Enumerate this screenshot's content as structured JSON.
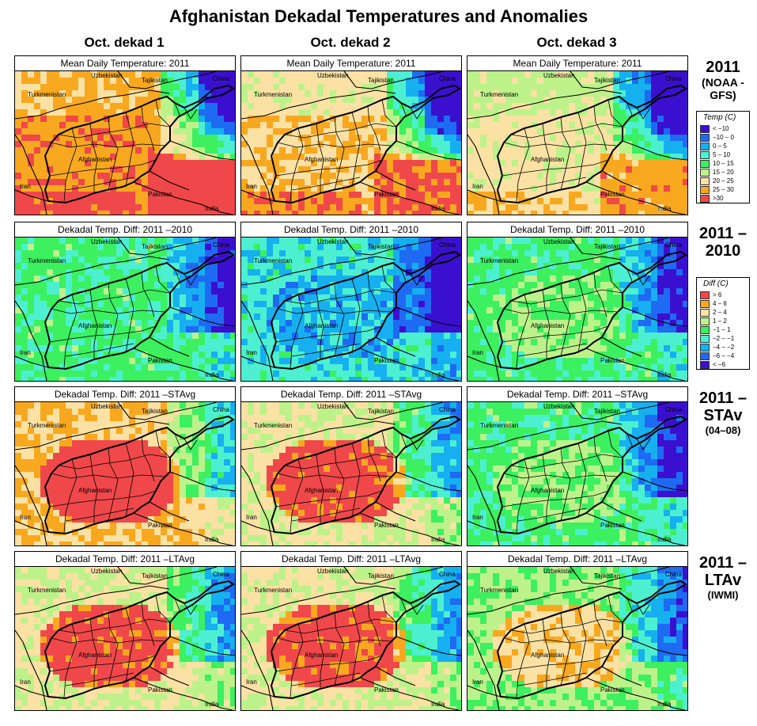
{
  "title": "Afghanistan Dekadal Temperatures and Anomalies",
  "columns": [
    "Oct. dekad 1",
    "Oct. dekad 2",
    "Oct. dekad 3"
  ],
  "rows": [
    {
      "label_main": "2011",
      "label_sub": "(NOAA -GFS)",
      "panel_title": "Mean Daily Temperature: 2011",
      "scale": "temp",
      "panels": [
        {
          "base": 1,
          "hot": 1
        },
        {
          "base": 0,
          "hot": 0
        },
        {
          "base": -1,
          "hot": -1
        }
      ]
    },
    {
      "label_main": "2011 –2010",
      "label_sub": "",
      "panel_title": "Dekadal Temp. Diff:  2011 –2010",
      "scale": "diff",
      "panels": [
        {
          "base": 0,
          "hot": 0
        },
        {
          "base": -1,
          "hot": -1
        },
        {
          "base": 0,
          "hot": 1
        }
      ]
    },
    {
      "label_main": "2011 –STAv",
      "label_sub": "(04–08)",
      "panel_title": "Dekadal Temp. Diff:  2011 –STAvg",
      "scale": "diff",
      "panels": [
        {
          "base": 3,
          "hot": 3
        },
        {
          "base": 2,
          "hot": 3
        },
        {
          "base": 0,
          "hot": 1
        }
      ]
    },
    {
      "label_main": "2011 –LTAv",
      "label_sub": "(IWMI)",
      "panel_title": "Dekadal Temp. Diff:  2011 –LTAvg",
      "scale": "diff",
      "panels": [
        {
          "base": 2,
          "hot": 3
        },
        {
          "base": 2,
          "hot": 3
        },
        {
          "base": 1,
          "hot": 2
        }
      ]
    }
  ],
  "place_labels": [
    "Uzbekistan",
    "Tajikistan",
    "China",
    "Turkmenistan",
    "Afghanistan",
    "Iran",
    "Pakistan",
    "India"
  ],
  "legend_temp": {
    "title": "Temp (C)",
    "items": [
      {
        "label": "< −10",
        "color": "#3b0fcf"
      },
      {
        "label": "−10 –  0",
        "color": "#1f6af2"
      },
      {
        "label": "0 –  5",
        "color": "#16b0f0"
      },
      {
        "label": "5 – 10",
        "color": "#4cf0d0"
      },
      {
        "label": "10 – 15",
        "color": "#3cf060"
      },
      {
        "label": "15 – 20",
        "color": "#bdf28a"
      },
      {
        "label": "20 – 25",
        "color": "#fbe1a3"
      },
      {
        "label": "25 – 30",
        "color": "#f8a81f"
      },
      {
        "label": ">30",
        "color": "#f0484a"
      }
    ]
  },
  "legend_diff": {
    "title": "Diff (C)",
    "items": [
      {
        "label": "> 6",
        "color": "#f0484a"
      },
      {
        "label": "4 –  6",
        "color": "#f8a81f"
      },
      {
        "label": "2 –  4",
        "color": "#fbe1a3"
      },
      {
        "label": "1 –  2",
        "color": "#bdf28a"
      },
      {
        "label": "−1 –  1",
        "color": "#3cf060"
      },
      {
        "label": "−2 – −1",
        "color": "#4cf0d0"
      },
      {
        "label": "−4 – −2",
        "color": "#16b0f0"
      },
      {
        "label": "−6 – −4",
        "color": "#1f6af2"
      },
      {
        "label": "< −6",
        "color": "#3b0fcf"
      }
    ]
  }
}
